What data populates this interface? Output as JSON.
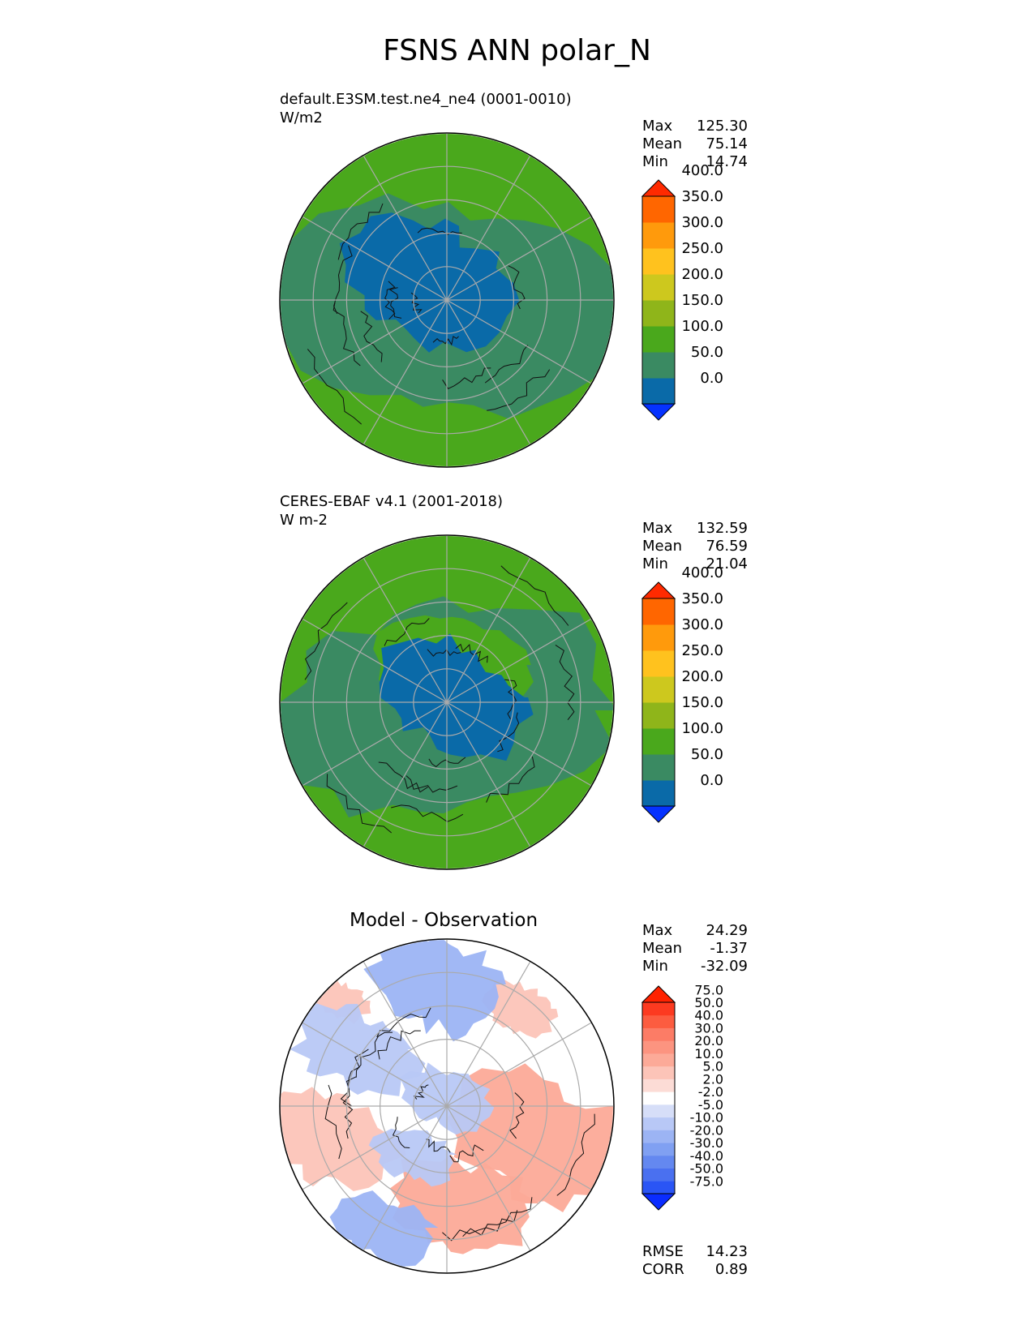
{
  "figure": {
    "title": "FSNS ANN polar_N"
  },
  "panels": [
    {
      "id": "test",
      "title_line1": "default.E3SM.test.ne4_ne4 (0001-0010)",
      "title_line2": "W/m2",
      "center_title": "",
      "stats": [
        {
          "label": "Max",
          "value": "125.30"
        },
        {
          "label": "Mean",
          "value": "75.14"
        },
        {
          "label": "Min",
          "value": "14.74"
        }
      ]
    },
    {
      "id": "ref",
      "title_line1": "CERES-EBAF v4.1 (2001-2018)",
      "title_line2": "W m-2",
      "center_title": "",
      "stats": [
        {
          "label": "Max",
          "value": "132.59"
        },
        {
          "label": "Mean",
          "value": "76.59"
        },
        {
          "label": "Min",
          "value": "21.04"
        }
      ]
    },
    {
      "id": "diff",
      "title_line1": "",
      "title_line2": "",
      "center_title": "Model - Observation",
      "stats": [
        {
          "label": "Max",
          "value": "24.29"
        },
        {
          "label": "Mean",
          "value": "-1.37"
        },
        {
          "label": "Min",
          "value": "-32.09"
        }
      ],
      "footer_stats": [
        {
          "label": "RMSE",
          "value": "14.23"
        },
        {
          "label": "CORR",
          "value": "0.89"
        }
      ]
    }
  ],
  "chart_data": [
    {
      "type": "heatmap",
      "projection": "north polar stereographic",
      "title": "default.E3SM.test.ne4_ne4 (0001-0010)",
      "units": "W/m2",
      "max": 125.3,
      "mean": 75.14,
      "min": 14.74,
      "colorbar": {
        "ticks": [
          "400.0",
          "350.0",
          "300.0",
          "250.0",
          "200.0",
          "150.0",
          "100.0",
          "50.0",
          "0.0"
        ],
        "levels": [
          0,
          50,
          100,
          150,
          200,
          250,
          300,
          350,
          400
        ],
        "extend": "both",
        "colors": [
          "#0532ff",
          "#0a6aa8",
          "#3a8a62",
          "#4aa81c",
          "#8fb51a",
          "#cdc81e",
          "#ffc21e",
          "#ff9a0c",
          "#ff6600",
          "#ff2a00"
        ]
      },
      "grid": true
    },
    {
      "type": "heatmap",
      "projection": "north polar stereographic",
      "title": "CERES-EBAF v4.1 (2001-2018)",
      "units": "W m-2",
      "max": 132.59,
      "mean": 76.59,
      "min": 21.04,
      "colorbar": {
        "ticks": [
          "400.0",
          "350.0",
          "300.0",
          "250.0",
          "200.0",
          "150.0",
          "100.0",
          "50.0",
          "0.0"
        ],
        "levels": [
          0,
          50,
          100,
          150,
          200,
          250,
          300,
          350,
          400
        ],
        "extend": "both",
        "colors": [
          "#0532ff",
          "#0a6aa8",
          "#3a8a62",
          "#4aa81c",
          "#8fb51a",
          "#cdc81e",
          "#ffc21e",
          "#ff9a0c",
          "#ff6600",
          "#ff2a00"
        ]
      },
      "grid": true
    },
    {
      "type": "heatmap",
      "projection": "north polar stereographic",
      "title": "Model - Observation",
      "max": 24.29,
      "mean": -1.37,
      "min": -32.09,
      "rmse": 14.23,
      "corr": 0.89,
      "colorbar": {
        "ticks": [
          "75.0",
          "50.0",
          "40.0",
          "30.0",
          "20.0",
          "10.0",
          "5.0",
          "2.0",
          "-2.0",
          "-5.0",
          "-10.0",
          "-20.0",
          "-30.0",
          "-40.0",
          "-50.0",
          "-75.0"
        ],
        "levels": [
          -75,
          -50,
          -40,
          -30,
          -20,
          -10,
          -5,
          -2,
          2,
          5,
          10,
          20,
          30,
          40,
          50,
          75
        ],
        "extend": "both",
        "colors": [
          "#0a2cff",
          "#2a55f5",
          "#4a70f0",
          "#6488f0",
          "#80a0f2",
          "#9cb4f4",
          "#b8c8f6",
          "#d6def8",
          "#ffffff",
          "#fcdcd6",
          "#fcc4b8",
          "#fcaa98",
          "#fc9480",
          "#fc7c66",
          "#fc5c40",
          "#fc3a20",
          "#ff2200"
        ]
      },
      "grid": true
    }
  ]
}
